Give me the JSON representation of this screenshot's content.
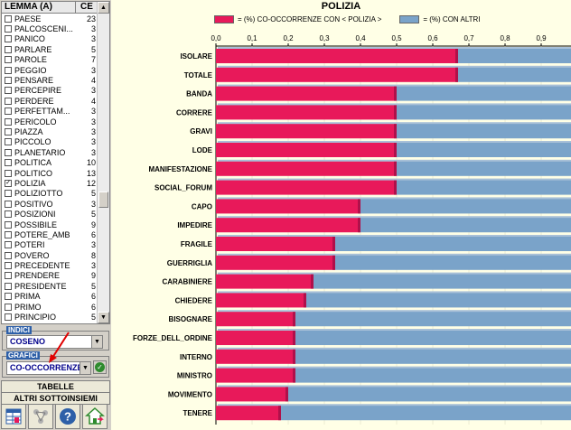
{
  "list": {
    "header_lemma": "LEMMA (A)",
    "header_ce": "CE",
    "items": [
      {
        "label": "PAESE",
        "count": "23",
        "checked": false
      },
      {
        "label": "PALCOSCENI...",
        "count": "3",
        "checked": false
      },
      {
        "label": "PANICO",
        "count": "3",
        "checked": false
      },
      {
        "label": "PARLARE",
        "count": "5",
        "checked": false
      },
      {
        "label": "PAROLE",
        "count": "7",
        "checked": false
      },
      {
        "label": "PEGGIO",
        "count": "3",
        "checked": false
      },
      {
        "label": "PENSARE",
        "count": "4",
        "checked": false
      },
      {
        "label": "PERCEPIRE",
        "count": "3",
        "checked": false
      },
      {
        "label": "PERDERE",
        "count": "4",
        "checked": false
      },
      {
        "label": "PERFETTAM...",
        "count": "3",
        "checked": false
      },
      {
        "label": "PERICOLO",
        "count": "3",
        "checked": false
      },
      {
        "label": "PIAZZA",
        "count": "3",
        "checked": false
      },
      {
        "label": "PICCOLO",
        "count": "3",
        "checked": false
      },
      {
        "label": "PLANETARIO",
        "count": "3",
        "checked": false
      },
      {
        "label": "POLITICA",
        "count": "10",
        "checked": false
      },
      {
        "label": "POLITICO",
        "count": "13",
        "checked": false
      },
      {
        "label": "POLIZIA",
        "count": "12",
        "checked": true
      },
      {
        "label": "POLIZIOTTO",
        "count": "5",
        "checked": false
      },
      {
        "label": "POSITIVO",
        "count": "3",
        "checked": false
      },
      {
        "label": "POSIZIONI",
        "count": "5",
        "checked": false
      },
      {
        "label": "POSSIBILE",
        "count": "9",
        "checked": false
      },
      {
        "label": "POTERE_AMB",
        "count": "6",
        "checked": false
      },
      {
        "label": "POTERI",
        "count": "3",
        "checked": false
      },
      {
        "label": "POVERO",
        "count": "8",
        "checked": false
      },
      {
        "label": "PRECEDENTE",
        "count": "3",
        "checked": false
      },
      {
        "label": "PRENDERE",
        "count": "9",
        "checked": false
      },
      {
        "label": "PRESIDENTE",
        "count": "5",
        "checked": false
      },
      {
        "label": "PRIMA",
        "count": "6",
        "checked": false
      },
      {
        "label": "PRIMO",
        "count": "6",
        "checked": false
      },
      {
        "label": "PRINCIPIO",
        "count": "5",
        "checked": false
      }
    ]
  },
  "indici": {
    "title": "INDICI",
    "value": "COSENO"
  },
  "grafici": {
    "title": "GRAFICI",
    "value": "CO-OCCORRENZE"
  },
  "buttons": {
    "tabelle": "TABELLE",
    "altri": "ALTRI SOTTOINSIEMI"
  },
  "icons": [
    "table-icon",
    "puzzle-icon",
    "help-icon",
    "home-icon"
  ],
  "colors": {
    "accent": "#e8195a",
    "other": "#7aa3c9",
    "chart_bg": "#ffffe6"
  },
  "chart_data": {
    "type": "bar",
    "orientation": "horizontal",
    "stacked": true,
    "title": "POLIZIA",
    "categories": [
      "ISOLARE",
      "TOTALE",
      "BANDA",
      "CORRERE",
      "GRAVI",
      "LODE",
      "MANIFESTAZIONE",
      "SOCIAL_FORUM",
      "CAPO",
      "IMPEDIRE",
      "FRAGILE",
      "GUERRIGLIA",
      "CARABINIERE",
      "CHIEDERE",
      "BISOGNARE",
      "FORZE_DELL_ORDINE",
      "INTERNO",
      "MINISTRO",
      "MOVIMENTO",
      "TENERE"
    ],
    "series": [
      {
        "name": "= (%) CO-OCCORRENZE CON  < POLIZIA >",
        "values": [
          0.67,
          0.67,
          0.5,
          0.5,
          0.5,
          0.5,
          0.5,
          0.5,
          0.4,
          0.4,
          0.33,
          0.33,
          0.27,
          0.25,
          0.22,
          0.22,
          0.22,
          0.22,
          0.2,
          0.18
        ]
      },
      {
        "name": "= (%)  CON ALTRI",
        "values": [
          0.33,
          0.33,
          0.5,
          0.5,
          0.5,
          0.5,
          0.5,
          0.5,
          0.6,
          0.6,
          0.67,
          0.67,
          0.73,
          0.75,
          0.78,
          0.78,
          0.78,
          0.78,
          0.8,
          0.82
        ]
      }
    ],
    "xticks": [
      "0,0",
      "0,1",
      "0,2",
      "0,3",
      "0,4",
      "0,5",
      "0,6",
      "0,7",
      "0,8",
      "0,9"
    ],
    "xlim": [
      0,
      1
    ],
    "legend": "top"
  }
}
